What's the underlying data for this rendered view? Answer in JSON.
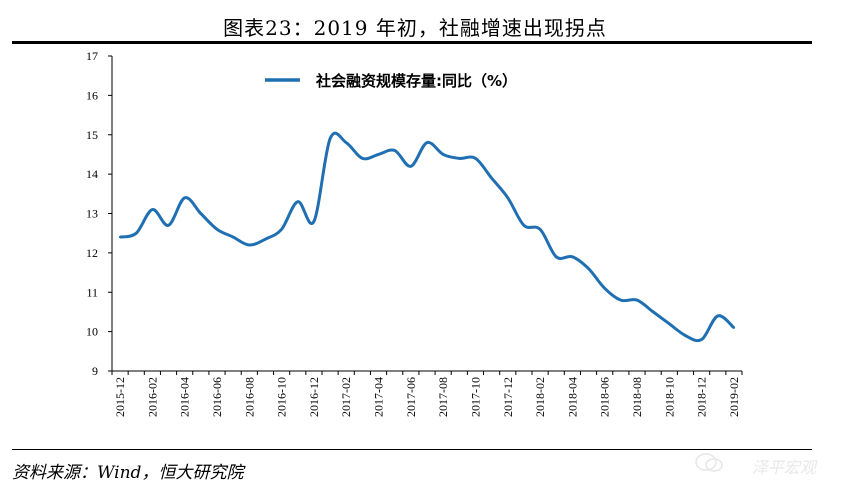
{
  "title": "图表23：2019 年初，社融增速出现拐点",
  "source": "资料来源：Wind，恒大研究院",
  "watermark": "泽平宏观",
  "colors": {
    "line": "#1f6fb2",
    "axis": "#000000"
  },
  "chart_data": {
    "type": "line",
    "title": "图表23：2019 年初，社融增速出现拐点",
    "xlabel": "",
    "ylabel": "",
    "ylim": [
      9,
      17
    ],
    "yticks": [
      9,
      10,
      11,
      12,
      13,
      14,
      15,
      16,
      17
    ],
    "x": [
      "2015-12",
      "2016-01",
      "2016-02",
      "2016-03",
      "2016-04",
      "2016-05",
      "2016-06",
      "2016-07",
      "2016-08",
      "2016-09",
      "2016-10",
      "2016-11",
      "2016-12",
      "2017-01",
      "2017-02",
      "2017-03",
      "2017-04",
      "2017-05",
      "2017-06",
      "2017-07",
      "2017-08",
      "2017-09",
      "2017-10",
      "2017-11",
      "2017-12",
      "2018-01",
      "2018-02",
      "2018-03",
      "2018-04",
      "2018-05",
      "2018-06",
      "2018-07",
      "2018-08",
      "2018-09",
      "2018-10",
      "2018-11",
      "2018-12",
      "2019-01",
      "2019-02"
    ],
    "xtick_labels": [
      "2015-12",
      "2016-02",
      "2016-04",
      "2016-06",
      "2016-08",
      "2016-10",
      "2016-12",
      "2017-02",
      "2017-04",
      "2017-06",
      "2017-08",
      "2017-10",
      "2017-12",
      "2018-02",
      "2018-04",
      "2018-06",
      "2018-08",
      "2018-10",
      "2018-12",
      "2019-02"
    ],
    "series": [
      {
        "name": "社会融资规模存量:同比（%）",
        "values": [
          12.4,
          12.5,
          13.1,
          12.7,
          13.4,
          13.0,
          12.6,
          12.4,
          12.2,
          12.35,
          12.6,
          13.3,
          12.8,
          14.9,
          14.8,
          14.4,
          14.5,
          14.6,
          14.2,
          14.8,
          14.5,
          14.4,
          14.4,
          13.9,
          13.4,
          12.7,
          12.6,
          11.9,
          11.9,
          11.6,
          11.1,
          10.8,
          10.8,
          10.5,
          10.2,
          9.9,
          9.8,
          10.4,
          10.1
        ]
      }
    ],
    "legend": {
      "position": "top-center"
    },
    "grid": false
  }
}
